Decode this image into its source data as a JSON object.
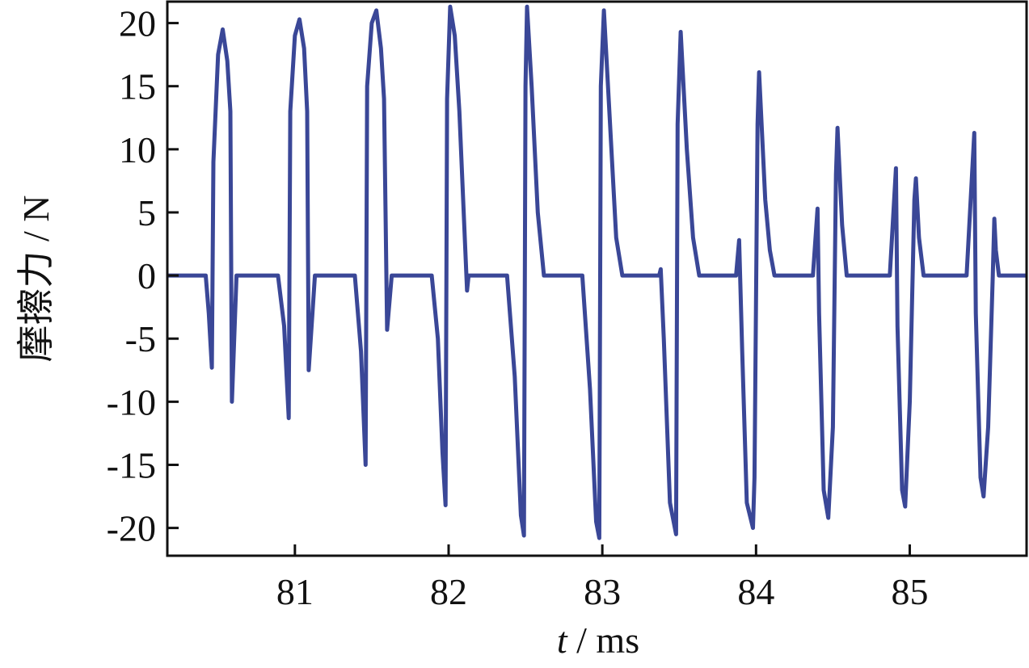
{
  "chart_data": {
    "type": "line",
    "xlabel": "t / ms",
    "ylabel": "摩擦力 / N",
    "xlim": [
      80.17,
      85.76
    ],
    "xticks": [
      81,
      82,
      83,
      84,
      85
    ],
    "ylim": [
      -22.2,
      21.7
    ],
    "yticks": [
      -20,
      -15,
      -10,
      -5,
      0,
      5,
      10,
      15,
      20
    ],
    "x": [
      80.17,
      80.42,
      80.44,
      80.46,
      80.47,
      80.5,
      80.53,
      80.56,
      80.58,
      80.59,
      80.62,
      80.89,
      80.93,
      80.96,
      80.97,
      81.0,
      81.03,
      81.06,
      81.08,
      81.09,
      81.13,
      81.39,
      81.43,
      81.46,
      81.47,
      81.5,
      81.53,
      81.56,
      81.58,
      81.6,
      81.63,
      81.89,
      81.93,
      81.96,
      81.98,
      81.99,
      82.01,
      82.04,
      82.07,
      82.12,
      82.13,
      82.38,
      82.43,
      82.47,
      82.49,
      82.5,
      82.51,
      82.54,
      82.58,
      82.62,
      82.87,
      82.92,
      82.96,
      82.98,
      82.99,
      83.01,
      83.05,
      83.09,
      83.13,
      83.37,
      83.38,
      83.4,
      83.44,
      83.48,
      83.49,
      83.51,
      83.55,
      83.59,
      83.63,
      83.87,
      83.89,
      83.91,
      83.94,
      83.98,
      83.99,
      84.01,
      84.02,
      84.06,
      84.09,
      84.12,
      84.37,
      84.4,
      84.41,
      84.44,
      84.47,
      84.5,
      84.52,
      84.53,
      84.56,
      84.59,
      84.87,
      84.91,
      84.92,
      84.95,
      84.97,
      85.0,
      85.03,
      85.04,
      85.06,
      85.09,
      85.37,
      85.42,
      85.43,
      85.46,
      85.48,
      85.51,
      85.54,
      85.55,
      85.56,
      85.58,
      85.76
    ],
    "series": [
      {
        "color": "#3a4797",
        "values": [
          0,
          0,
          -3,
          -7.3,
          9,
          17.5,
          19.5,
          17,
          13,
          -10,
          0,
          0,
          -4,
          -11.3,
          13,
          19,
          20.3,
          18,
          13,
          -7.5,
          0,
          0,
          -6,
          -15,
          15,
          20,
          21,
          18,
          14,
          -4.3,
          0,
          0,
          -5,
          -14,
          -18.2,
          14,
          21.3,
          19,
          13,
          -1.2,
          0,
          0,
          -8,
          -19,
          -20.6,
          15,
          21.3,
          15,
          5,
          0,
          0,
          -9,
          -19.5,
          -20.8,
          15,
          21,
          12,
          3,
          0,
          0,
          0.5,
          -5,
          -18,
          -20.5,
          12,
          19.3,
          10,
          3,
          0,
          0,
          2.8,
          -6,
          -18,
          -20,
          -16,
          12,
          16.1,
          6,
          2,
          0,
          0,
          5.3,
          -3,
          -17,
          -19.2,
          -12,
          8,
          11.7,
          4,
          0,
          0,
          8.5,
          -4,
          -17,
          -18.3,
          -10,
          6,
          7.7,
          3,
          0,
          0,
          11.3,
          -3,
          -16,
          -17.5,
          -12,
          0,
          4.5,
          2,
          0,
          0
        ]
      }
    ]
  }
}
